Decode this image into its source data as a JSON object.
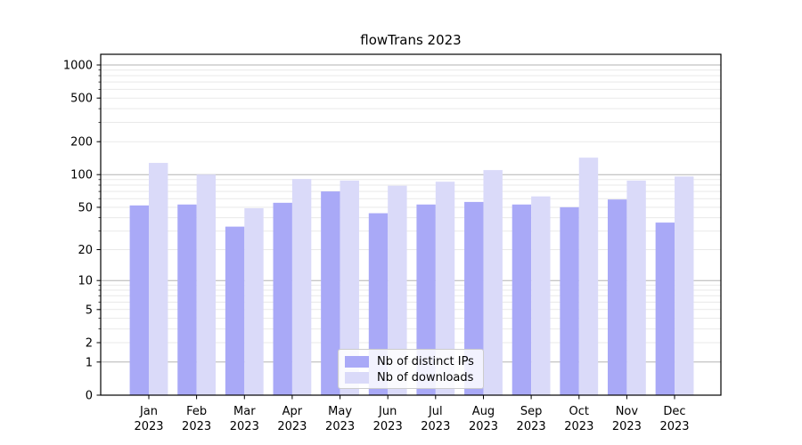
{
  "figure": {
    "title": "flowTrans 2023"
  },
  "chart_data": {
    "type": "bar",
    "title": "flowTrans 2023",
    "xlabel": "",
    "ylabel": "",
    "yscale": "symlog",
    "ylim": [
      0,
      1150
    ],
    "grid": true,
    "y_ticks": [
      0,
      1,
      2,
      5,
      10,
      20,
      50,
      100,
      200,
      500,
      1000
    ],
    "major_gridlines": [
      1,
      10,
      100,
      1000
    ],
    "categories": [
      "Jan 2023",
      "Feb 2023",
      "Mar 2023",
      "Apr 2023",
      "May 2023",
      "Jun 2023",
      "Jul 2023",
      "Aug 2023",
      "Sep 2023",
      "Oct 2023",
      "Nov 2023",
      "Dec 2023"
    ],
    "series": [
      {
        "name": "Nb of distinct IPs",
        "color": "#a9a9f7",
        "values": [
          52,
          53,
          33,
          55,
          70,
          44,
          53,
          56,
          53,
          50,
          59,
          36
        ]
      },
      {
        "name": "Nb of downloads",
        "color": "#dadaf9",
        "values": [
          128,
          100,
          49,
          91,
          88,
          79,
          86,
          110,
          63,
          143,
          88,
          96
        ]
      }
    ],
    "legend": {
      "position": "lower-center",
      "entries": [
        "Nb of distinct IPs",
        "Nb of downloads"
      ]
    },
    "colors": {
      "spine": "#000000",
      "major_grid": "#b3b3b3",
      "minor_grid": "#e9e9e9",
      "text": "#000000"
    }
  }
}
